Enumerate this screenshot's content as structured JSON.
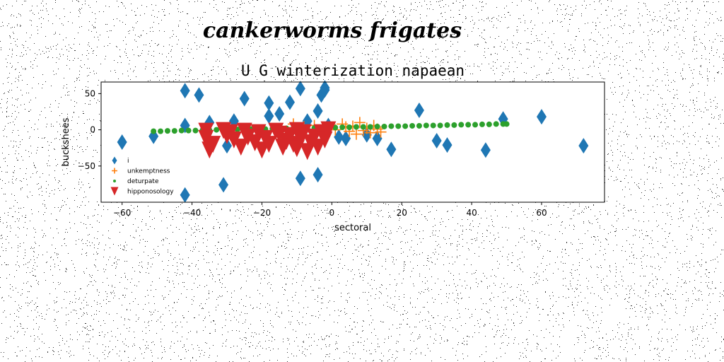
{
  "suptitle": "cankerworms frigates",
  "chart_data": {
    "type": "scatter",
    "title": "U G winterization napaean",
    "xlabel": "sectoral",
    "ylabel": "buckshees",
    "xlim": [
      -66,
      78
    ],
    "ylim": [
      -100,
      66
    ],
    "xticks": [
      -60,
      -40,
      -20,
      0,
      20,
      40,
      60
    ],
    "xtick_labels": [
      "−60",
      "−40",
      "−20",
      "0",
      "20",
      "40",
      "60"
    ],
    "yticks": [
      -50,
      0,
      50
    ],
    "ytick_labels": [
      "−50",
      "0",
      "50"
    ],
    "grid": false,
    "legend_position": "lower-left",
    "series": [
      {
        "name": "i",
        "marker": "diamond",
        "color": "#1f77b4",
        "points": [
          [
            -60,
            -17
          ],
          [
            -51,
            -9
          ],
          [
            -42,
            54
          ],
          [
            -42,
            6
          ],
          [
            -42,
            -90
          ],
          [
            -38,
            48
          ],
          [
            -35,
            10
          ],
          [
            -31,
            -76
          ],
          [
            -30,
            -22
          ],
          [
            -28,
            12
          ],
          [
            -25,
            43
          ],
          [
            -18,
            19
          ],
          [
            -18,
            37
          ],
          [
            -15,
            22
          ],
          [
            -12,
            38
          ],
          [
            -12,
            -10
          ],
          [
            -9,
            57
          ],
          [
            -9,
            -67
          ],
          [
            -7,
            12
          ],
          [
            -4,
            -62
          ],
          [
            -4,
            26
          ],
          [
            -3,
            48
          ],
          [
            -2,
            55
          ],
          [
            -2,
            58
          ],
          [
            -1,
            6
          ],
          [
            2,
            -10
          ],
          [
            4,
            -12
          ],
          [
            10,
            -7
          ],
          [
            13,
            -12
          ],
          [
            17,
            -27
          ],
          [
            25,
            27
          ],
          [
            30,
            -15
          ],
          [
            33,
            -21
          ],
          [
            44,
            -28
          ],
          [
            49,
            15
          ],
          [
            60,
            18
          ],
          [
            72,
            -22
          ]
        ]
      },
      {
        "name": "unkemptness",
        "marker": "plus",
        "color": "#ff7f0e",
        "points": [
          [
            -11,
            8
          ],
          [
            -8,
            4
          ],
          [
            -5,
            6
          ],
          [
            -2,
            2
          ],
          [
            1,
            0
          ],
          [
            3,
            8
          ],
          [
            4,
            4
          ],
          [
            5,
            -2
          ],
          [
            6,
            5
          ],
          [
            7,
            -6
          ],
          [
            8,
            10
          ],
          [
            9,
            -1
          ],
          [
            10,
            2
          ],
          [
            11,
            -4
          ],
          [
            12,
            6
          ],
          [
            13,
            1
          ],
          [
            14,
            -3
          ]
        ]
      },
      {
        "name": "deturpate",
        "marker": "circle",
        "color": "#2ca02c",
        "points": [
          [
            -51,
            -2
          ],
          [
            -49,
            -2
          ],
          [
            -47,
            -1.5
          ],
          [
            -45,
            -1.5
          ],
          [
            -43,
            -1
          ],
          [
            -41,
            -1
          ],
          [
            -39,
            -1
          ],
          [
            -37,
            -0.5
          ],
          [
            -35,
            -0.5
          ],
          [
            -33,
            0
          ],
          [
            -31,
            0
          ],
          [
            -29,
            0
          ],
          [
            -27,
            0.5
          ],
          [
            -25,
            0.5
          ],
          [
            -23,
            1
          ],
          [
            -21,
            1
          ],
          [
            -19,
            1
          ],
          [
            -17,
            1.5
          ],
          [
            -15,
            1.5
          ],
          [
            -13,
            2
          ],
          [
            -11,
            2
          ],
          [
            -9,
            2
          ],
          [
            -7,
            2.5
          ],
          [
            -5,
            2.5
          ],
          [
            -3,
            3
          ],
          [
            -1,
            3
          ],
          [
            1,
            3
          ],
          [
            3,
            3.5
          ],
          [
            5,
            3.5
          ],
          [
            7,
            4
          ],
          [
            9,
            4
          ],
          [
            11,
            4
          ],
          [
            13,
            4.5
          ],
          [
            15,
            4.5
          ],
          [
            17,
            5
          ],
          [
            19,
            5
          ],
          [
            21,
            5
          ],
          [
            23,
            5.5
          ],
          [
            25,
            5.5
          ],
          [
            27,
            6
          ],
          [
            29,
            6
          ],
          [
            31,
            6
          ],
          [
            33,
            6.5
          ],
          [
            35,
            6.5
          ],
          [
            37,
            7
          ],
          [
            39,
            7
          ],
          [
            41,
            7
          ],
          [
            43,
            7.5
          ],
          [
            45,
            7.5
          ],
          [
            47,
            8
          ],
          [
            49,
            8
          ],
          [
            50,
            8
          ]
        ]
      },
      {
        "name": "hipponosology",
        "marker": "triangle-down",
        "color": "#d62728",
        "points": [
          [
            -36,
            -2
          ],
          [
            -36,
            -12
          ],
          [
            -35,
            -28
          ],
          [
            -34,
            -20
          ],
          [
            -31,
            -1
          ],
          [
            -30,
            -8
          ],
          [
            -29,
            -4
          ],
          [
            -28,
            -14
          ],
          [
            -26,
            -24
          ],
          [
            -25,
            -2
          ],
          [
            -24,
            -10
          ],
          [
            -22,
            -18
          ],
          [
            -21,
            -4
          ],
          [
            -20,
            -28
          ],
          [
            -19,
            -12
          ],
          [
            -18,
            -20
          ],
          [
            -16,
            -2
          ],
          [
            -15,
            -6
          ],
          [
            -14,
            -24
          ],
          [
            -13,
            -16
          ],
          [
            -12,
            -8
          ],
          [
            -11,
            -20
          ],
          [
            -10,
            -1
          ],
          [
            -10,
            -26
          ],
          [
            -9,
            -12
          ],
          [
            -8,
            -4
          ],
          [
            -7,
            -30
          ],
          [
            -6,
            -18
          ],
          [
            -5,
            -10
          ],
          [
            -4,
            -24
          ],
          [
            -3,
            -4
          ],
          [
            -2,
            -14
          ],
          [
            -1,
            0
          ]
        ]
      }
    ]
  }
}
